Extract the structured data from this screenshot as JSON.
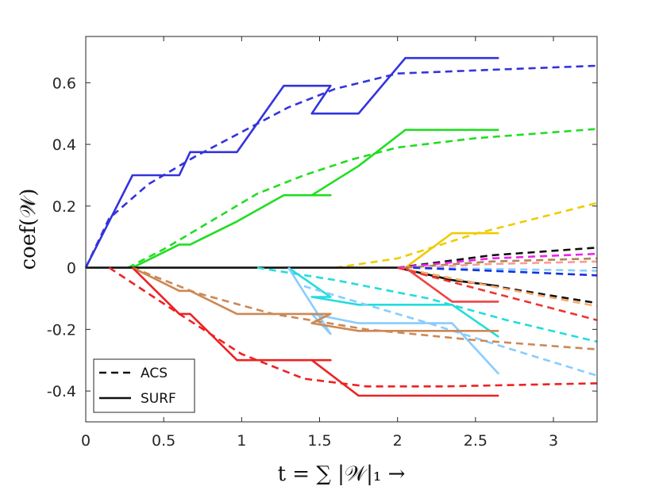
{
  "chart_data": {
    "type": "line",
    "title": "",
    "xlabel": "t = ∑ |𝒲|₁ →",
    "ylabel": "coef(𝒲)",
    "xlim": [
      0,
      3.28
    ],
    "ylim": [
      -0.5,
      0.75
    ],
    "xticks": [
      0,
      0.5,
      1,
      1.5,
      2,
      2.5,
      3
    ],
    "xtick_labels": [
      "0",
      "0.5",
      "1",
      "1.5",
      "2",
      "2.5",
      "3"
    ],
    "yticks": [
      -0.4,
      -0.2,
      0,
      0.2,
      0.4,
      0.6
    ],
    "ytick_labels": [
      "-0.4",
      "-0.2",
      "0",
      "0.2",
      "0.4",
      "0.6"
    ],
    "grid": false,
    "legend": {
      "placement": "bottom-left",
      "entries": [
        {
          "label": "ACS",
          "style": "dashed"
        },
        {
          "label": "SURF",
          "style": "solid"
        }
      ]
    },
    "series": [
      {
        "method": "ACS",
        "color": "#3333dd",
        "x": [
          0,
          0.15,
          0.4,
          0.7,
          1.0,
          1.3,
          1.6,
          2.0,
          2.5,
          3.28
        ],
        "y": [
          0,
          0.16,
          0.27,
          0.36,
          0.44,
          0.52,
          0.58,
          0.63,
          0.64,
          0.655
        ]
      },
      {
        "method": "SURF",
        "color": "#3333dd",
        "x": [
          0,
          0.3,
          0.6,
          0.67,
          0.97,
          1.27,
          1.57,
          1.45,
          1.75,
          2.05,
          2.65
        ],
        "y": [
          0,
          0.3,
          0.3,
          0.375,
          0.375,
          0.59,
          0.59,
          0.5,
          0.5,
          0.68,
          0.68
        ]
      },
      {
        "method": "ACS",
        "color": "#22dd22",
        "x": [
          0.27,
          0.5,
          0.8,
          1.1,
          1.4,
          1.7,
          2.0,
          2.5,
          3.28
        ],
        "y": [
          0,
          0.06,
          0.15,
          0.24,
          0.3,
          0.35,
          0.39,
          0.42,
          0.45
        ]
      },
      {
        "method": "SURF",
        "color": "#22dd22",
        "x": [
          0.3,
          0.6,
          0.67,
          0.97,
          1.27,
          1.57,
          1.45,
          1.75,
          2.05,
          2.65
        ],
        "y": [
          0,
          0.075,
          0.075,
          0.15,
          0.235,
          0.235,
          0.235,
          0.33,
          0.447,
          0.447
        ]
      },
      {
        "method": "ACS",
        "color": "#eecc00",
        "x": [
          1.6,
          2.0,
          2.5,
          3.28
        ],
        "y": [
          0,
          0.03,
          0.11,
          0.21
        ]
      },
      {
        "method": "SURF",
        "color": "#eecc00",
        "x": [
          2.05,
          2.35,
          2.65
        ],
        "y": [
          0,
          0.112,
          0.112
        ]
      },
      {
        "method": "ACS",
        "color": "#111111",
        "x": [
          2.0,
          2.6,
          3.28
        ],
        "y": [
          0,
          0.04,
          0.065
        ]
      },
      {
        "method": "ACS",
        "color": "#ee22ee",
        "x": [
          2.0,
          2.6,
          3.28
        ],
        "y": [
          0,
          0.03,
          0.045
        ]
      },
      {
        "method": "ACS",
        "color": "#aa8855",
        "x": [
          2.05,
          2.6,
          3.28
        ],
        "y": [
          0,
          0.02,
          0.03
        ]
      },
      {
        "method": "ACS",
        "color": "#ff9999",
        "x": [
          2.1,
          2.6,
          3.28
        ],
        "y": [
          0,
          0.012,
          0.02
        ]
      },
      {
        "method": "ACS",
        "color": "#88ccff",
        "x": [
          2.1,
          2.7,
          3.28
        ],
        "y": [
          0,
          -0.005,
          -0.01
        ]
      },
      {
        "method": "ACS",
        "color": "#1133dd",
        "x": [
          2.1,
          2.7,
          3.28
        ],
        "y": [
          0,
          -0.012,
          -0.025
        ]
      },
      {
        "method": "ACS",
        "color": "#111111",
        "x": [
          2.0,
          2.5,
          3.28
        ],
        "y": [
          0,
          -0.05,
          -0.115
        ]
      },
      {
        "method": "SURF",
        "color": "#111111",
        "x": [
          0,
          1.6,
          2.0,
          2.35,
          2.65
        ],
        "y": [
          0,
          0,
          0,
          -0.04,
          -0.06
        ]
      },
      {
        "method": "ACS",
        "color": "#ffaa66",
        "x": [
          2.0,
          2.6,
          3.28
        ],
        "y": [
          0,
          -0.06,
          -0.125
        ]
      },
      {
        "method": "ACS",
        "color": "#ee3333",
        "x": [
          2.0,
          2.6,
          3.28
        ],
        "y": [
          0,
          -0.08,
          -0.17
        ]
      },
      {
        "method": "SURF",
        "color": "#ee4444",
        "x": [
          2.05,
          2.35,
          2.65
        ],
        "y": [
          0,
          -0.11,
          -0.11
        ]
      },
      {
        "method": "ACS",
        "color": "#22dddd",
        "x": [
          1.1,
          1.6,
          2.2,
          2.7,
          3.28
        ],
        "y": [
          0,
          -0.04,
          -0.1,
          -0.17,
          -0.24
        ]
      },
      {
        "method": "SURF",
        "color": "#22dddd",
        "x": [
          1.3,
          1.57,
          1.45,
          1.75,
          2.05,
          2.35,
          2.65
        ],
        "y": [
          0,
          -0.095,
          -0.095,
          -0.12,
          -0.12,
          -0.12,
          -0.225
        ]
      },
      {
        "method": "ACS",
        "color": "#88ccff",
        "x": [
          1.4,
          1.8,
          2.2,
          2.7,
          3.28
        ],
        "y": [
          -0.06,
          -0.12,
          -0.18,
          -0.26,
          -0.35
        ]
      },
      {
        "method": "SURF",
        "color": "#88ccff",
        "x": [
          1.3,
          1.57,
          1.45,
          1.75,
          2.05,
          2.35,
          2.65
        ],
        "y": [
          0,
          -0.215,
          -0.15,
          -0.18,
          -0.18,
          -0.18,
          -0.345
        ]
      },
      {
        "method": "ACS",
        "color": "#cc8855",
        "x": [
          0.3,
          0.7,
          1.2,
          1.8,
          2.5,
          3.28
        ],
        "y": [
          0,
          -0.08,
          -0.15,
          -0.2,
          -0.235,
          -0.265
        ]
      },
      {
        "method": "SURF",
        "color": "#cc8855",
        "x": [
          0.3,
          0.6,
          0.67,
          0.97,
          1.27,
          1.57,
          1.45,
          1.75,
          2.05,
          2.65
        ],
        "y": [
          0,
          -0.075,
          -0.075,
          -0.15,
          -0.15,
          -0.15,
          -0.18,
          -0.205,
          -0.205,
          -0.205
        ]
      },
      {
        "method": "ACS",
        "color": "#ee2222",
        "x": [
          0.15,
          0.6,
          1.0,
          1.4,
          1.8,
          2.3,
          3.28
        ],
        "y": [
          0,
          -0.15,
          -0.28,
          -0.36,
          -0.385,
          -0.385,
          -0.375
        ]
      },
      {
        "method": "SURF",
        "color": "#ee2222",
        "x": [
          0.3,
          0.6,
          0.67,
          0.97,
          1.27,
          1.57,
          1.45,
          1.75,
          2.05,
          2.65
        ],
        "y": [
          0,
          -0.15,
          -0.15,
          -0.3,
          -0.3,
          -0.3,
          -0.3,
          -0.415,
          -0.415,
          -0.415
        ]
      }
    ]
  }
}
